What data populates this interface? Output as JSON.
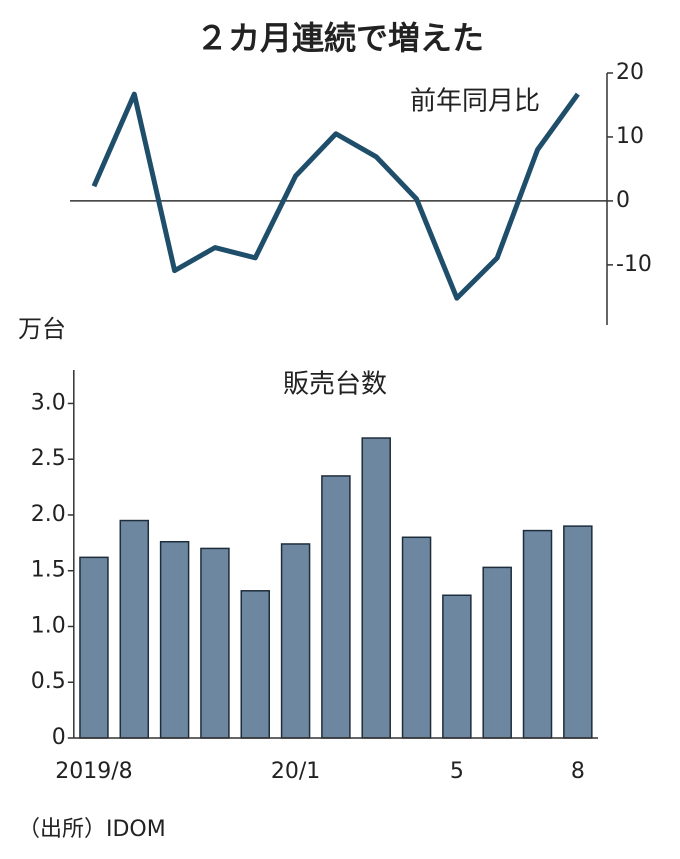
{
  "title": "２カ月連続で増えた",
  "source": "（出所）IDOM",
  "chart_data": [
    {
      "type": "line",
      "title": "前年同月比",
      "color": "#1f4e6b",
      "values": [
        2.3,
        16.7,
        -10.9,
        -7.3,
        -8.9,
        3.9,
        10.5,
        6.9,
        0.3,
        -15.2,
        -8.9,
        8.0,
        16.7
      ],
      "ylim": [
        -19.4,
        20
      ],
      "yticks": [
        -10,
        0,
        10,
        20
      ]
    },
    {
      "type": "bar",
      "title": "販売台数",
      "y_label": "万台",
      "color": "#6e87a0",
      "categories": [
        "2019/8",
        null,
        null,
        null,
        null,
        "20/1",
        null,
        null,
        null,
        "5",
        null,
        null,
        "8"
      ],
      "values": [
        1.62,
        1.95,
        1.76,
        1.7,
        1.32,
        1.74,
        2.35,
        2.69,
        1.8,
        1.28,
        1.53,
        1.86,
        1.9
      ],
      "ylim": [
        0,
        3.3
      ],
      "yticks": [
        0,
        0.5,
        {
          "value": 1,
          "label": "1.0"
        },
        1.5,
        {
          "value": 2,
          "label": "2.0"
        },
        2.5,
        {
          "value": 3,
          "label": "3.0"
        }
      ]
    }
  ]
}
